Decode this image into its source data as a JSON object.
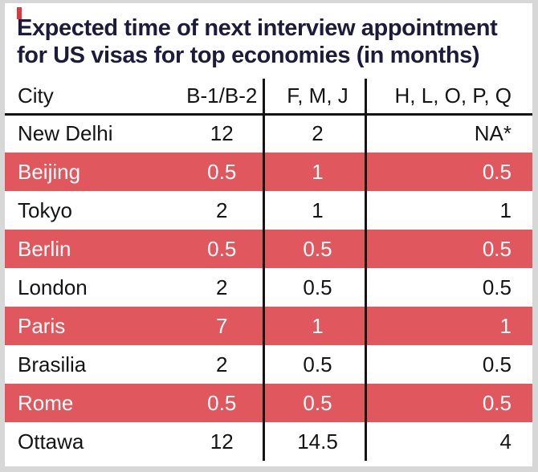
{
  "colors": {
    "page-bg": "#d7d7d7",
    "sheet-bg": "#ffffff",
    "highlight": "#e0585d",
    "highlight-text": "#ffffff",
    "text": "#141414",
    "title": "#1c1c3a",
    "rule": "#141414",
    "tick": "#e2383c"
  },
  "title": {
    "line1": "Expected time of next interview appointment",
    "line2": "for US visas for top economies (in months)"
  },
  "table": {
    "headers": [
      "City",
      "B-1/B-2",
      "F, M, J",
      "H, L, O, P, Q"
    ],
    "rows": [
      {
        "highlight": false,
        "cells": [
          "New Delhi",
          "12",
          "2",
          "NA*"
        ]
      },
      {
        "highlight": true,
        "cells": [
          "Beijing",
          "0.5",
          "1",
          "0.5"
        ]
      },
      {
        "highlight": false,
        "cells": [
          "Tokyo",
          "2",
          "1",
          "1"
        ]
      },
      {
        "highlight": true,
        "cells": [
          "Berlin",
          "0.5",
          "0.5",
          "0.5"
        ]
      },
      {
        "highlight": false,
        "cells": [
          "London",
          "2",
          "0.5",
          "0.5"
        ]
      },
      {
        "highlight": true,
        "cells": [
          "Paris",
          "7",
          "1",
          "1"
        ]
      },
      {
        "highlight": false,
        "cells": [
          "Brasilia",
          "2",
          "0.5",
          "0.5"
        ]
      },
      {
        "highlight": true,
        "cells": [
          "Rome",
          "0.5",
          "0.5",
          "0.5"
        ]
      },
      {
        "highlight": false,
        "cells": [
          "Ottawa",
          "12",
          "14.5",
          "4"
        ]
      }
    ]
  },
  "chart_data": {
    "type": "table",
    "title": "Expected time of next interview appointment for US visas for top economies (in months)",
    "units": "months",
    "columns": [
      "City",
      "B-1/B-2",
      "F, M, J",
      "H, L, O, P, Q"
    ],
    "rows": [
      [
        "New Delhi",
        12,
        2,
        "NA*"
      ],
      [
        "Beijing",
        0.5,
        1,
        0.5
      ],
      [
        "Tokyo",
        2,
        1,
        1
      ],
      [
        "Berlin",
        0.5,
        0.5,
        0.5
      ],
      [
        "London",
        2,
        0.5,
        0.5
      ],
      [
        "Paris",
        7,
        1,
        1
      ],
      [
        "Brasilia",
        2,
        0.5,
        0.5
      ],
      [
        "Rome",
        0.5,
        0.5,
        0.5
      ],
      [
        "Ottawa",
        12,
        14.5,
        4
      ]
    ],
    "highlighted_rows": [
      "Beijing",
      "Berlin",
      "Paris",
      "Rome"
    ]
  }
}
